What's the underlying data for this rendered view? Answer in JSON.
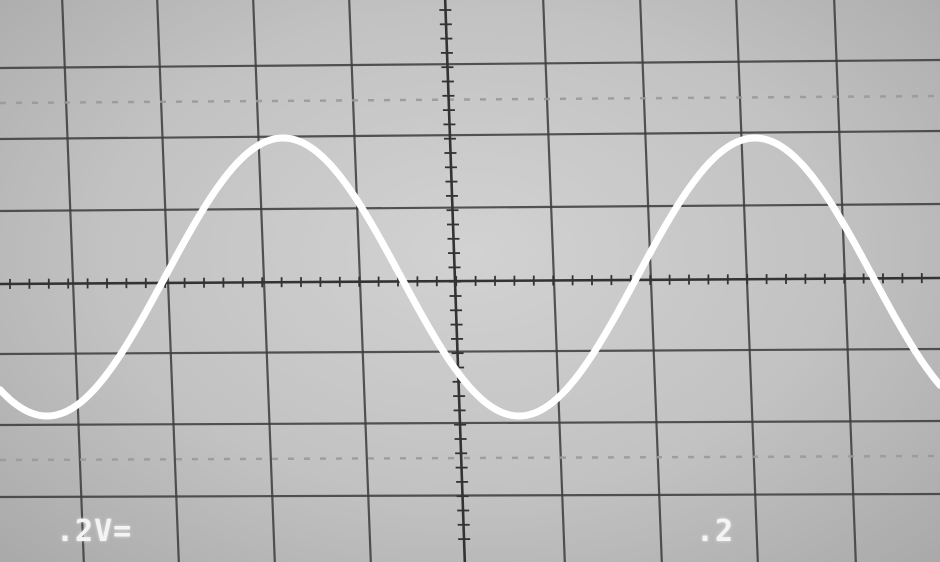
{
  "scope": {
    "volts_per_div": ".2V=",
    "time_per_div": ".2"
  },
  "colors": {
    "screen": "#c6c6c6",
    "grid": "#3c3c3c",
    "trace": "#ffffff",
    "dotted_marker": "#9a9a9a"
  }
}
